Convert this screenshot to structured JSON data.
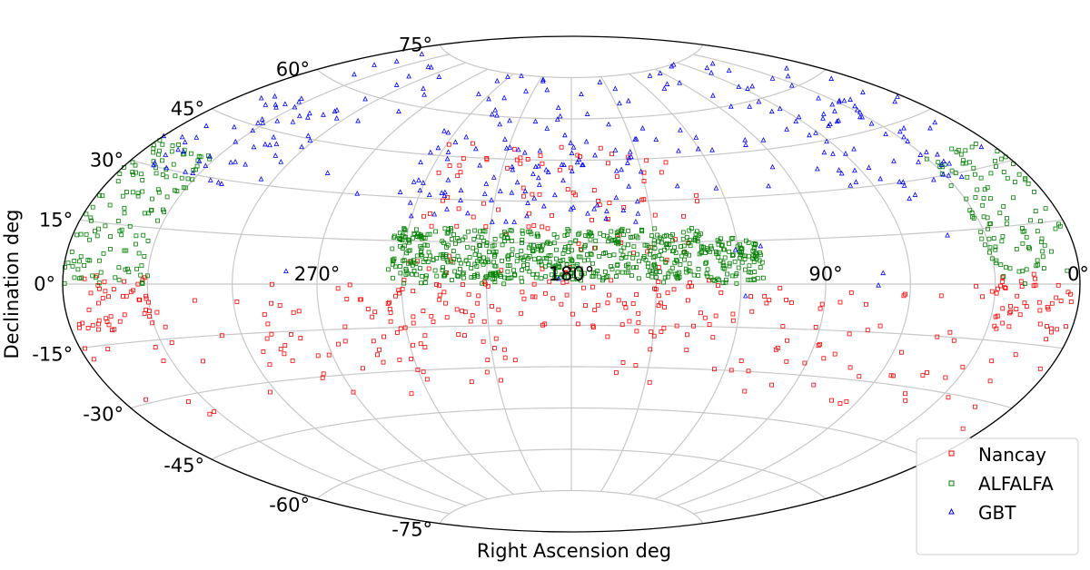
{
  "chart_data": {
    "type": "scatter",
    "projection": "aitoff",
    "title": "",
    "xlabel": "Right Ascension deg",
    "ylabel": "Declination deg",
    "x_ticks": [
      "270°",
      "180°",
      "90°",
      "0°"
    ],
    "y_ticks_north": [
      "75°",
      "60°",
      "45°",
      "30°",
      "15°",
      "0°"
    ],
    "y_ticks_south": [
      "-15°",
      "-30°",
      "-45°",
      "-60°",
      "-75°"
    ],
    "grid": true,
    "legend_position": "lower-right",
    "series": [
      {
        "name": "Nancay",
        "marker": "square",
        "color": "#ff0000"
      },
      {
        "name": "ALFALFA",
        "marker": "square",
        "color": "#008000"
      },
      {
        "name": "GBT",
        "marker": "triangle",
        "color": "#0000ff"
      }
    ]
  }
}
